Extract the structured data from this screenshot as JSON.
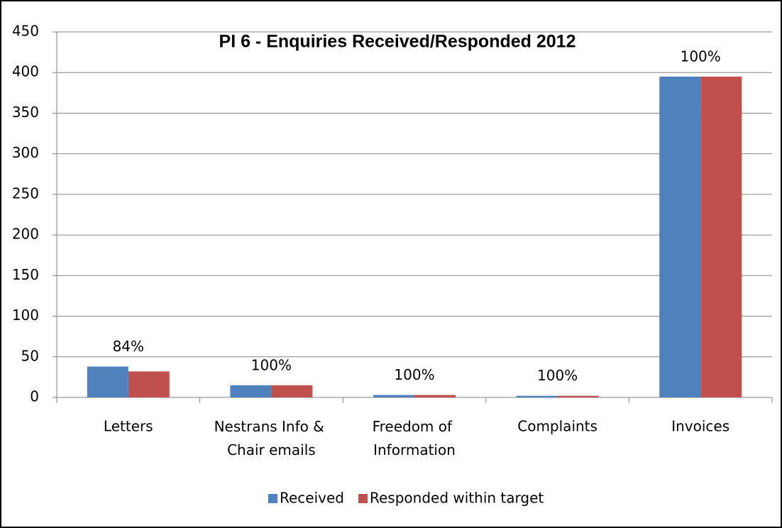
{
  "chart_data": {
    "type": "bar",
    "title": "PI 6 - Enquiries Received/Responded 2012",
    "categories": [
      "Letters",
      "Nestrans Info & Chair emails",
      "Freedom of Information",
      "Complaints",
      "Invoices"
    ],
    "series": [
      {
        "name": "Received",
        "color": "#4f81bd",
        "values": [
          38,
          15,
          3,
          2,
          395
        ]
      },
      {
        "name": "Responded within target",
        "color": "#c0504d",
        "values": [
          32,
          15,
          3,
          2,
          395
        ]
      }
    ],
    "annotations": [
      "84%",
      "100%",
      "100%",
      "100%",
      "100%"
    ],
    "ylim": [
      0,
      450
    ],
    "yticks": [
      0,
      50,
      100,
      150,
      200,
      250,
      300,
      350,
      400,
      450
    ],
    "grid": true,
    "legend": "bottom"
  }
}
